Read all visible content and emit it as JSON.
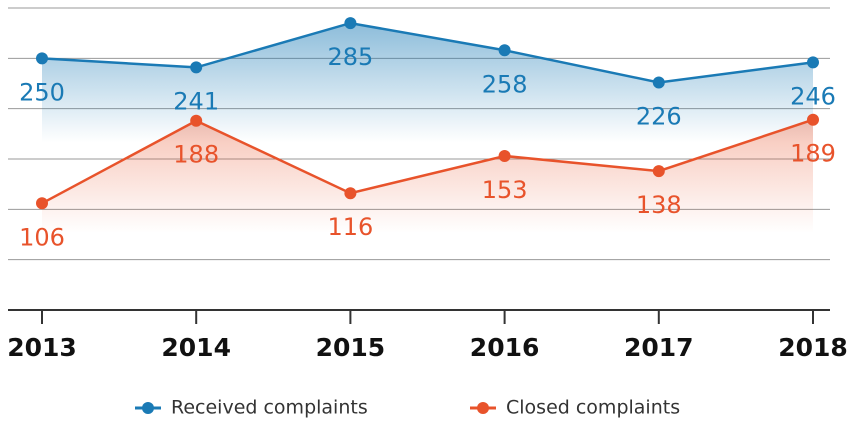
{
  "chart_data": {
    "type": "line",
    "categories": [
      "2013",
      "2014",
      "2015",
      "2016",
      "2017",
      "2018"
    ],
    "series": [
      {
        "name": "Received complaints",
        "color": "#1a7ab5",
        "values": [
          250,
          241,
          285,
          258,
          226,
          246
        ]
      },
      {
        "name": "Closed complaints",
        "color": "#e8532b",
        "values": [
          106,
          188,
          116,
          153,
          138,
          189
        ]
      }
    ],
    "ylim": [
      0,
      300
    ],
    "yticks": [
      50,
      100,
      150,
      200,
      250,
      300
    ],
    "grid": true,
    "legend": "bottom"
  }
}
